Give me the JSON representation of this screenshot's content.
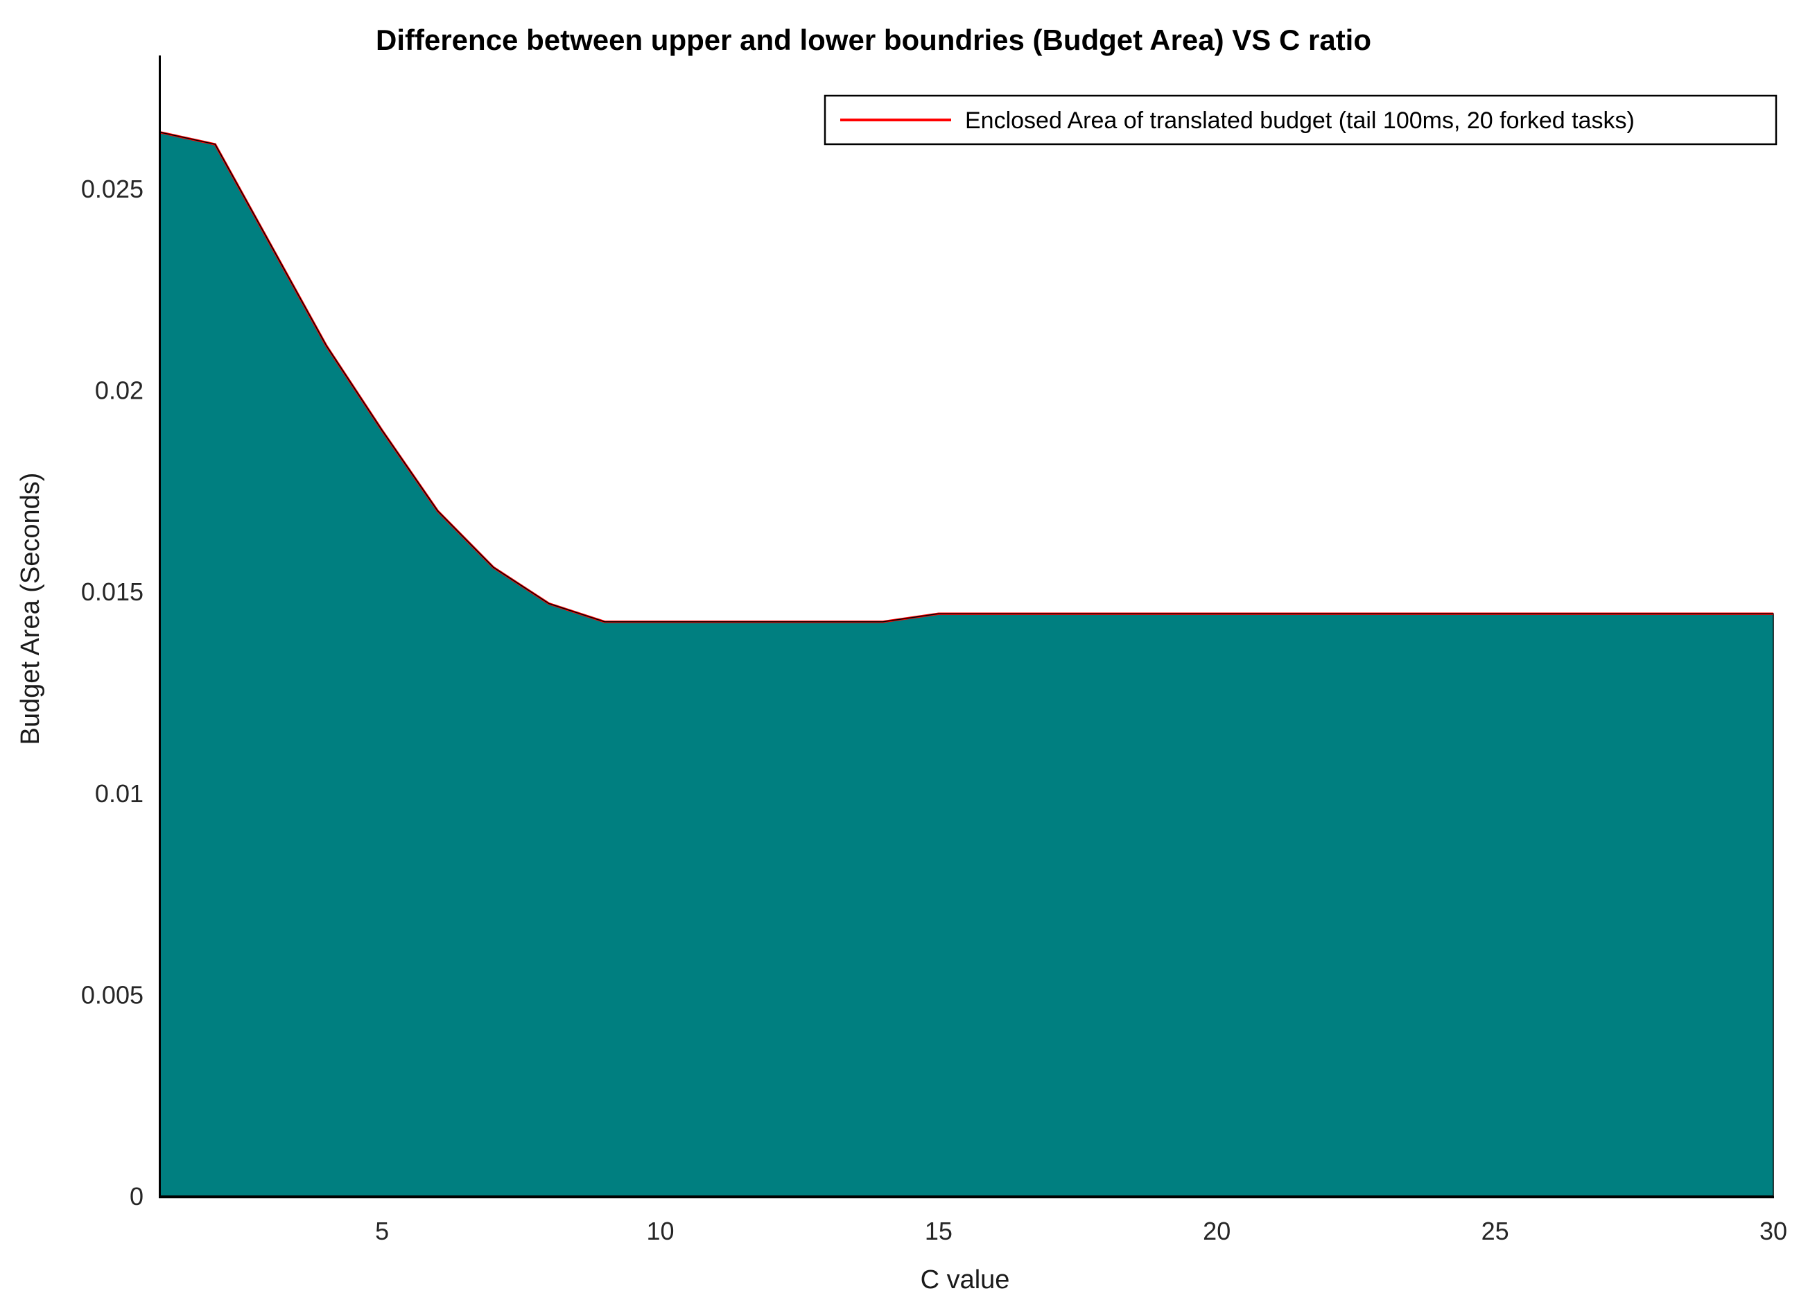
{
  "figure": {
    "background_color": "#FFFFFF",
    "axis_color": "#000000",
    "tick_text_color": "#262626"
  },
  "chart_data": {
    "type": "area",
    "title": "Difference between upper and lower boundries (Budget Area) VS C ratio",
    "xlabel": "C value",
    "ylabel": "Budget Area (Seconds)",
    "legend": {
      "position": "top-right",
      "entries": [
        {
          "label": "Enclosed Area of translated budget (tail 100ms, 20 forked tasks)",
          "line_color": "#FF0000"
        }
      ]
    },
    "grid": false,
    "xlim": [
      1,
      30
    ],
    "ylim": [
      0,
      0.02825
    ],
    "x_ticks": [
      {
        "label": "5",
        "value": 5
      },
      {
        "label": "10",
        "value": 10
      },
      {
        "label": "15",
        "value": 15
      },
      {
        "label": "20",
        "value": 20
      },
      {
        "label": "25",
        "value": 25
      },
      {
        "label": "30",
        "value": 30
      }
    ],
    "y_ticks": [
      {
        "label": "0",
        "value": 0
      },
      {
        "label": "0.005",
        "value": 0.005
      },
      {
        "label": "0.01",
        "value": 0.01
      },
      {
        "label": "0.015",
        "value": 0.015
      },
      {
        "label": "0.02",
        "value": 0.02
      },
      {
        "label": "0.025",
        "value": 0.025
      }
    ],
    "x": [
      1,
      2,
      3,
      4,
      5,
      6,
      7,
      8,
      9,
      10,
      11,
      12,
      13,
      14,
      15,
      16,
      17,
      18,
      19,
      20,
      21,
      22,
      23,
      24,
      25,
      26,
      27,
      28,
      29,
      30
    ],
    "values": [
      0.0264,
      0.0261,
      0.0236,
      0.0211,
      0.019,
      0.017,
      0.0156,
      0.0147,
      0.01425,
      0.01425,
      0.01425,
      0.01425,
      0.01425,
      0.01425,
      0.01445,
      0.01445,
      0.01445,
      0.01445,
      0.01445,
      0.01445,
      0.01445,
      0.01445,
      0.01445,
      0.01445,
      0.01445,
      0.01445,
      0.01445,
      0.01445,
      0.01445,
      0.01445
    ],
    "area_fill_color": "#007F80",
    "area_edge_color": "#000000",
    "line_color": "#FF0000"
  }
}
